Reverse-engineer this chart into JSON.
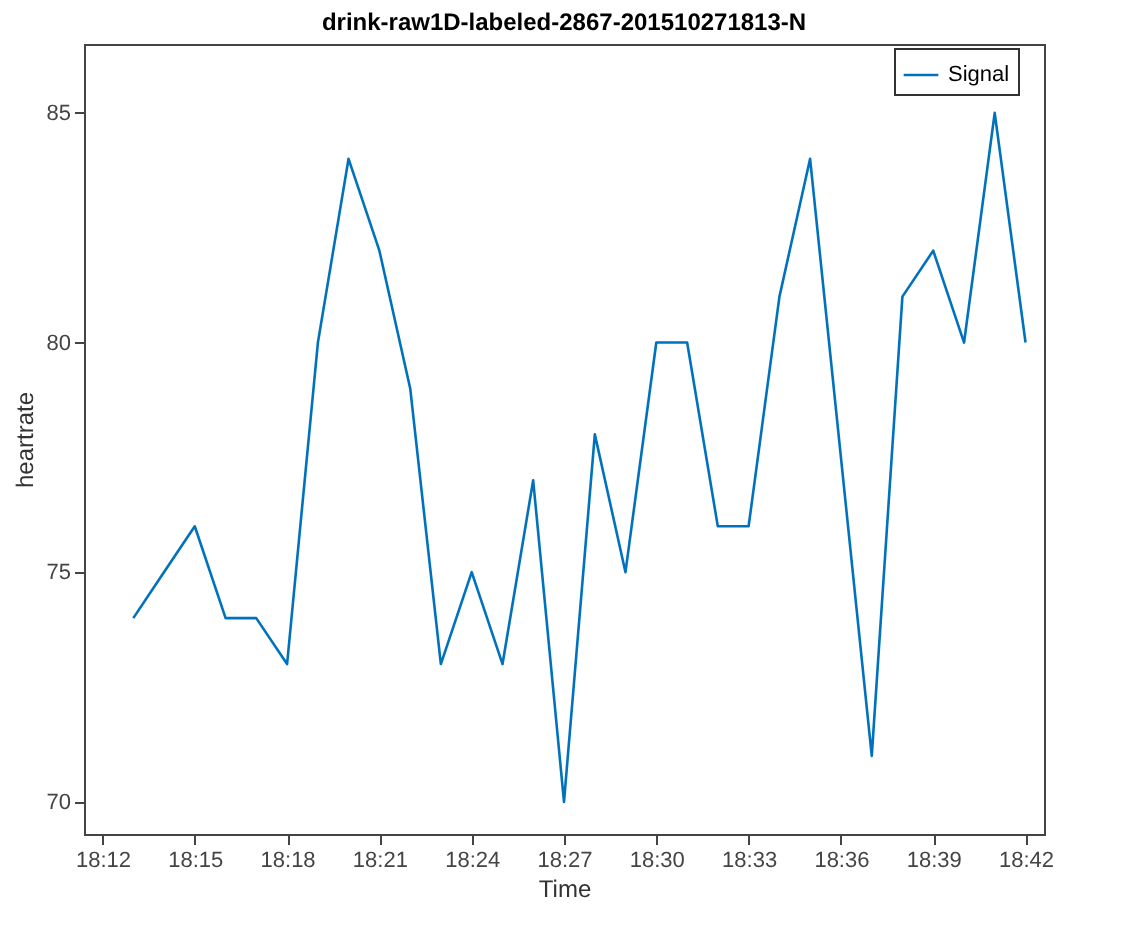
{
  "chart_data": {
    "type": "line",
    "title": "drink-raw1D-labeled-2867-201510271813-N",
    "xlabel": "Time",
    "ylabel": "heartrate",
    "x": [
      18.2167,
      18.2333,
      18.25,
      18.2667,
      18.2833,
      18.3,
      18.3167,
      18.3333,
      18.35,
      18.3667,
      18.3833,
      18.4,
      18.4167,
      18.4333,
      18.45,
      18.4667,
      18.4833,
      18.5,
      18.5167,
      18.5333,
      18.55,
      18.5667,
      18.5833,
      18.6167,
      18.6333,
      18.65,
      18.6667,
      18.6833,
      18.7
    ],
    "series": [
      {
        "name": "Signal",
        "color": "#0072bd",
        "values": [
          74,
          75,
          76,
          74,
          74,
          73,
          80,
          84,
          82,
          79,
          73,
          75,
          73,
          77,
          70,
          78,
          75,
          80,
          80,
          76,
          76,
          81,
          84,
          71,
          81,
          82,
          80,
          85,
          80
        ]
      }
    ],
    "xlim": [
      18.19,
      18.71
    ],
    "xticks": [
      {
        "value": 18.2,
        "label": "18:12"
      },
      {
        "value": 18.25,
        "label": "18:15"
      },
      {
        "value": 18.3,
        "label": "18:18"
      },
      {
        "value": 18.35,
        "label": "18:21"
      },
      {
        "value": 18.4,
        "label": "18:24"
      },
      {
        "value": 18.45,
        "label": "18:27"
      },
      {
        "value": 18.5,
        "label": "18:30"
      },
      {
        "value": 18.55,
        "label": "18:33"
      },
      {
        "value": 18.6,
        "label": "18:36"
      },
      {
        "value": 18.65,
        "label": "18:39"
      },
      {
        "value": 18.7,
        "label": "18:42"
      }
    ],
    "ylim": [
      69.3,
      86.5
    ],
    "yticks": [
      70,
      75,
      80,
      85
    ],
    "grid": false,
    "legend": "top right",
    "marker": "none",
    "line_style": "solid"
  }
}
